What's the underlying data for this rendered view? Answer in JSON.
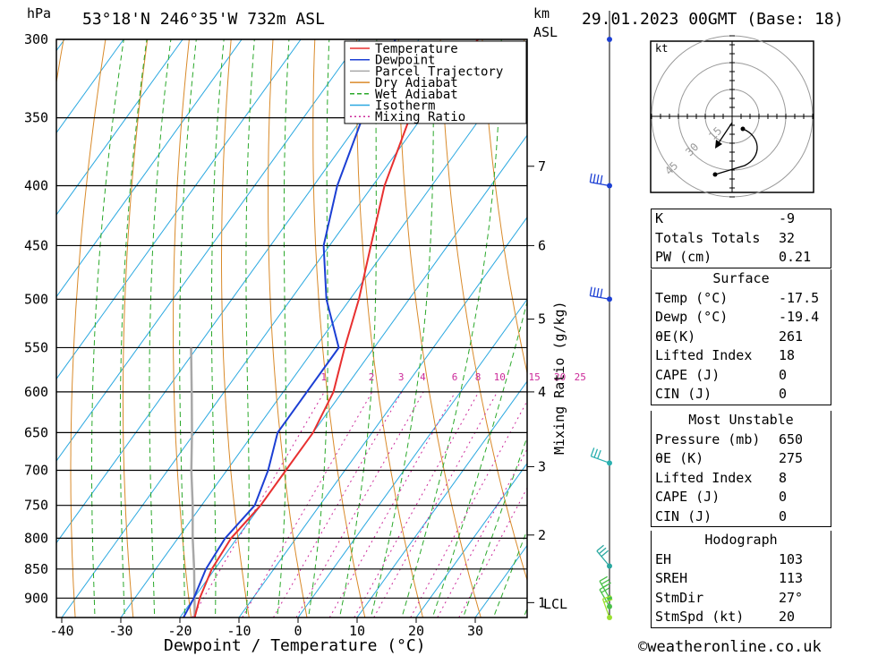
{
  "header": {
    "pressure_unit": "hPa",
    "location": "53°18'N  246°35'W  732m  ASL",
    "height_unit_km": "km",
    "height_unit_asl": "ASL",
    "datetime": "29.01.2023  00GMT  (Base: 18)"
  },
  "footer": {
    "credit": "©weatheronline.co.uk"
  },
  "chart_data": {
    "type": "line",
    "xlabel": "Dewpoint / Temperature (°C)",
    "right_axis_label": "Mixing Ratio (g/kg)",
    "x_ticks": [
      -40,
      -30,
      -20,
      -10,
      0,
      10,
      20,
      30
    ],
    "pressure_levels": [
      300,
      350,
      400,
      450,
      500,
      550,
      600,
      650,
      700,
      750,
      800,
      850,
      900
    ],
    "km_ticks": [
      {
        "label": "7",
        "p": 385
      },
      {
        "label": "6",
        "p": 450
      },
      {
        "label": "5",
        "p": 520
      },
      {
        "label": "4",
        "p": 600
      },
      {
        "label": "3",
        "p": 695
      },
      {
        "label": "2",
        "p": 795
      },
      {
        "label": "1",
        "p": 908
      }
    ],
    "lcl_label": "LCL",
    "lcl_p": 910,
    "mixing_ratio_labels": [
      "1",
      "2",
      "3",
      "4",
      "6",
      "8",
      "10",
      "15",
      "20",
      "25"
    ],
    "mixing_ratio_values": [
      1,
      2,
      3,
      4,
      6,
      8,
      10,
      15,
      20,
      25
    ],
    "legend": {
      "items": [
        {
          "label": "Temperature",
          "color": "#e83030",
          "style": "solid"
        },
        {
          "label": "Dewpoint",
          "color": "#1c3fd4",
          "style": "solid"
        },
        {
          "label": "Parcel Trajectory",
          "color": "#a8a8a8",
          "style": "solid"
        },
        {
          "label": "Dry Adiabat",
          "color": "#d98a2a",
          "style": "solid"
        },
        {
          "label": "Wet Adiabat",
          "color": "#2aa82a",
          "style": "dashed"
        },
        {
          "label": "Isotherm",
          "color": "#2aa8e0",
          "style": "solid"
        },
        {
          "label": "Mixing Ratio",
          "color": "#cc2a9a",
          "style": "dotted"
        }
      ]
    },
    "temperature": [
      {
        "p": 935,
        "t": -17.5
      },
      {
        "p": 900,
        "t": -19
      },
      {
        "p": 850,
        "t": -20.5
      },
      {
        "p": 800,
        "t": -21
      },
      {
        "p": 750,
        "t": -20
      },
      {
        "p": 700,
        "t": -20
      },
      {
        "p": 650,
        "t": -20
      },
      {
        "p": 600,
        "t": -21.5
      },
      {
        "p": 550,
        "t": -25
      },
      {
        "p": 500,
        "t": -28.5
      },
      {
        "p": 450,
        "t": -33
      },
      {
        "p": 400,
        "t": -38
      },
      {
        "p": 350,
        "t": -42
      },
      {
        "p": 300,
        "t": -40
      }
    ],
    "dewpoint": [
      {
        "p": 935,
        "t": -19.4
      },
      {
        "p": 900,
        "t": -20
      },
      {
        "p": 850,
        "t": -21.5
      },
      {
        "p": 800,
        "t": -22
      },
      {
        "p": 750,
        "t": -21
      },
      {
        "p": 700,
        "t": -23
      },
      {
        "p": 650,
        "t": -26
      },
      {
        "p": 600,
        "t": -26
      },
      {
        "p": 550,
        "t": -26
      },
      {
        "p": 500,
        "t": -34
      },
      {
        "p": 450,
        "t": -41
      },
      {
        "p": 400,
        "t": -46
      },
      {
        "p": 350,
        "t": -50
      },
      {
        "p": 300,
        "t": -54
      }
    ],
    "parcel": [
      {
        "p": 935,
        "t": -17.5
      },
      {
        "p": 910,
        "t": -19.2
      },
      {
        "p": 850,
        "t": -23.5
      },
      {
        "p": 800,
        "t": -27.5
      },
      {
        "p": 750,
        "t": -31.5
      },
      {
        "p": 700,
        "t": -36
      },
      {
        "p": 650,
        "t": -40.5
      },
      {
        "p": 600,
        "t": -45.5
      },
      {
        "p": 550,
        "t": -51
      }
    ],
    "wind_profile": [
      {
        "p": 300,
        "dir": 0,
        "spd": 0
      },
      {
        "p": 400,
        "dir": 280,
        "spd": 25
      },
      {
        "p": 500,
        "dir": 280,
        "spd": 25
      },
      {
        "p": 690,
        "dir": 290,
        "spd": 20
      },
      {
        "p": 845,
        "dir": 320,
        "spd": 15
      },
      {
        "p": 900,
        "dir": 330,
        "spd": 15
      },
      {
        "p": 915,
        "dir": 330,
        "spd": 10
      },
      {
        "p": 935,
        "dir": 340,
        "spd": 10
      }
    ],
    "hodograph": {
      "unit_label": "kt",
      "ring_labels": [
        "15",
        "30",
        "45"
      ]
    }
  },
  "indices": {
    "general": [
      {
        "name": "K",
        "value": "-9"
      },
      {
        "name": "Totals Totals",
        "value": "32"
      },
      {
        "name": "PW (cm)",
        "value": "0.21"
      }
    ],
    "surface": {
      "title": "Surface",
      "rows": [
        {
          "name": "Temp (°C)",
          "value": "-17.5"
        },
        {
          "name": "Dewp (°C)",
          "value": "-19.4"
        },
        {
          "name": "θE(K)",
          "value": "261"
        },
        {
          "name": "Lifted Index",
          "value": "18"
        },
        {
          "name": "CAPE (J)",
          "value": "0"
        },
        {
          "name": "CIN (J)",
          "value": "0"
        }
      ]
    },
    "most_unstable": {
      "title": "Most Unstable",
      "rows": [
        {
          "name": "Pressure (mb)",
          "value": "650"
        },
        {
          "name": "θE (K)",
          "value": "275"
        },
        {
          "name": "Lifted Index",
          "value": "8"
        },
        {
          "name": "CAPE (J)",
          "value": "0"
        },
        {
          "name": "CIN (J)",
          "value": "0"
        }
      ]
    },
    "hodograph": {
      "title": "Hodograph",
      "rows": [
        {
          "name": "EH",
          "value": "103"
        },
        {
          "name": "SREH",
          "value": "113"
        },
        {
          "name": "StmDir",
          "value": "27°"
        },
        {
          "name": "StmSpd (kt)",
          "value": "20"
        }
      ]
    }
  }
}
